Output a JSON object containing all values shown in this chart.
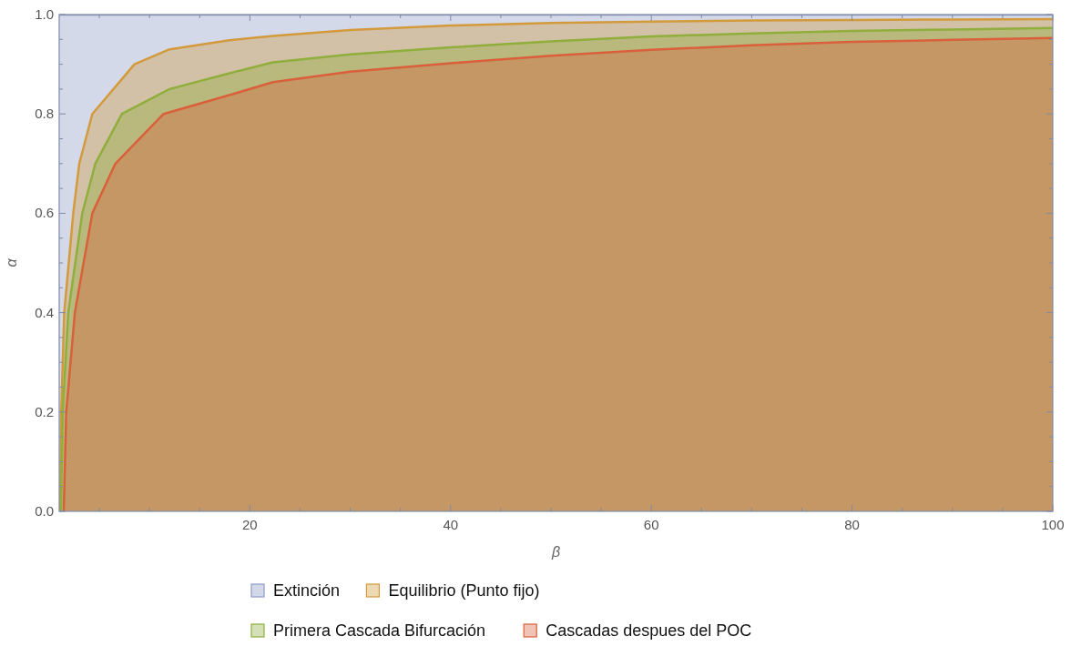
{
  "chart_data": {
    "type": "area",
    "xlabel": "β",
    "ylabel": "α",
    "legend": "bottom",
    "grid": false,
    "xlim": [
      1,
      100
    ],
    "ylim": [
      0,
      1
    ],
    "xticks": [
      {
        "value": 5,
        "label": null
      },
      {
        "value": 10,
        "label": null
      },
      {
        "value": 15,
        "label": null
      },
      20,
      {
        "value": 25,
        "label": null
      },
      {
        "value": 30,
        "label": null
      },
      {
        "value": 35,
        "label": null
      },
      40,
      {
        "value": 45,
        "label": null
      },
      {
        "value": 50,
        "label": null
      },
      {
        "value": 55,
        "label": null
      },
      60,
      {
        "value": 65,
        "label": null
      },
      {
        "value": 70,
        "label": null
      },
      {
        "value": 75,
        "label": null
      },
      80,
      {
        "value": 85,
        "label": null
      },
      {
        "value": 90,
        "label": null
      },
      {
        "value": 95,
        "label": null
      },
      100
    ],
    "yticks": [
      {
        "value": 0,
        "label": "0.0"
      },
      {
        "value": 0.05,
        "label": null
      },
      {
        "value": 0.1,
        "label": null
      },
      {
        "value": 0.15,
        "label": null
      },
      {
        "value": 0.2,
        "label": "0.2"
      },
      {
        "value": 0.25,
        "label": null
      },
      {
        "value": 0.3,
        "label": null
      },
      {
        "value": 0.35,
        "label": null
      },
      {
        "value": 0.4,
        "label": "0.4"
      },
      {
        "value": 0.45,
        "label": null
      },
      {
        "value": 0.5,
        "label": null
      },
      {
        "value": 0.55,
        "label": null
      },
      {
        "value": 0.6,
        "label": "0.6"
      },
      {
        "value": 0.65,
        "label": null
      },
      {
        "value": 0.7,
        "label": null
      },
      {
        "value": 0.75,
        "label": null
      },
      {
        "value": 0.8,
        "label": "0.8"
      },
      {
        "value": 0.85,
        "label": null
      },
      {
        "value": 0.9,
        "label": null
      },
      {
        "value": 0.95,
        "label": null
      },
      {
        "value": 1,
        "label": "1.0"
      }
    ],
    "series": [
      {
        "name": "Extinción",
        "color": "#8d9cc6",
        "x": [
          1,
          100
        ],
        "values": [
          1,
          1
        ]
      },
      {
        "name": "Equilibrio (Punto fijo)",
        "color": "#d39a3c",
        "x": [
          1.07,
          1.2,
          1.5,
          2.4,
          3.0,
          4.3,
          8.5,
          12,
          17.8,
          22.3,
          30,
          40,
          50,
          60,
          70,
          80,
          90,
          100
        ],
        "values": [
          0,
          0.2,
          0.4,
          0.6,
          0.7,
          0.8,
          0.9,
          0.93,
          0.948,
          0.957,
          0.969,
          0.978,
          0.983,
          0.986,
          0.988,
          0.989,
          0.99,
          0.991
        ]
      },
      {
        "name": "Primera Cascada Bifurcación",
        "color": "#8fae3c",
        "x": [
          1.17,
          1.35,
          1.9,
          3.3,
          4.6,
          7.25,
          12,
          17.8,
          22.3,
          30,
          40,
          50,
          60,
          70,
          80,
          90,
          100
        ],
        "values": [
          0,
          0.2,
          0.4,
          0.6,
          0.7,
          0.8,
          0.85,
          0.881,
          0.904,
          0.92,
          0.934,
          0.946,
          0.956,
          0.962,
          0.967,
          0.97,
          0.973
        ]
      },
      {
        "name": "Cascadas despues del POC",
        "color": "#d9603a",
        "x": [
          1.45,
          1.7,
          2.56,
          4.3,
          6.6,
          11.4,
          17.8,
          22.3,
          30,
          40,
          50,
          60,
          70,
          80,
          90,
          100
        ],
        "values": [
          0,
          0.2,
          0.4,
          0.6,
          0.7,
          0.8,
          0.837,
          0.864,
          0.885,
          0.902,
          0.917,
          0.929,
          0.938,
          0.945,
          0.949,
          0.953
        ]
      }
    ]
  }
}
